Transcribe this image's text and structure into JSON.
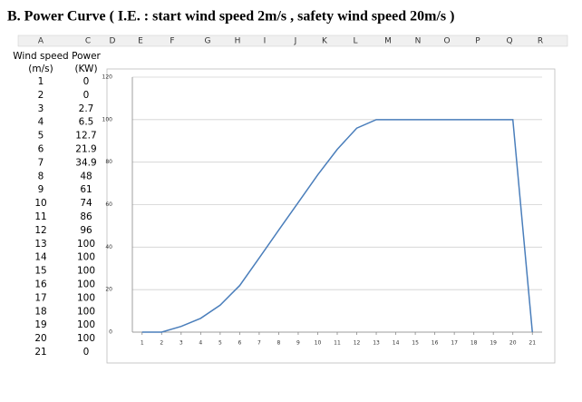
{
  "title": "B. Power Curve ( I.E. : start wind speed 2m/s , safety wind speed 20m/s )",
  "columns": [
    "A",
    "C",
    "D",
    "E",
    "F",
    "G",
    "H",
    "I",
    "J",
    "K",
    "L",
    "M",
    "N",
    "O",
    "P",
    "Q",
    "R"
  ],
  "table": {
    "headers": [
      [
        "Wind speed",
        "(m/s)"
      ],
      [
        "Power",
        "(KW)"
      ]
    ]
  },
  "chart_data": {
    "type": "line",
    "x": [
      1,
      2,
      3,
      4,
      5,
      6,
      7,
      8,
      9,
      10,
      11,
      12,
      13,
      14,
      15,
      16,
      17,
      18,
      19,
      20,
      21
    ],
    "series": [
      {
        "name": "Power",
        "color": "#4a7ebb",
        "values": [
          0,
          0,
          2.7,
          6.5,
          12.7,
          21.9,
          34.9,
          48,
          61,
          74,
          86,
          96,
          100,
          100,
          100,
          100,
          100,
          100,
          100,
          100,
          0
        ]
      }
    ],
    "xlim": [
      0.5,
      21.5
    ],
    "xticks": [
      1,
      2,
      3,
      4,
      5,
      6,
      7,
      8,
      9,
      10,
      11,
      12,
      13,
      14,
      15,
      16,
      17,
      18,
      19,
      20,
      21
    ],
    "ylim": [
      0,
      120
    ],
    "yticks": [
      0,
      20,
      40,
      60,
      80,
      100,
      120
    ],
    "grid": true
  }
}
